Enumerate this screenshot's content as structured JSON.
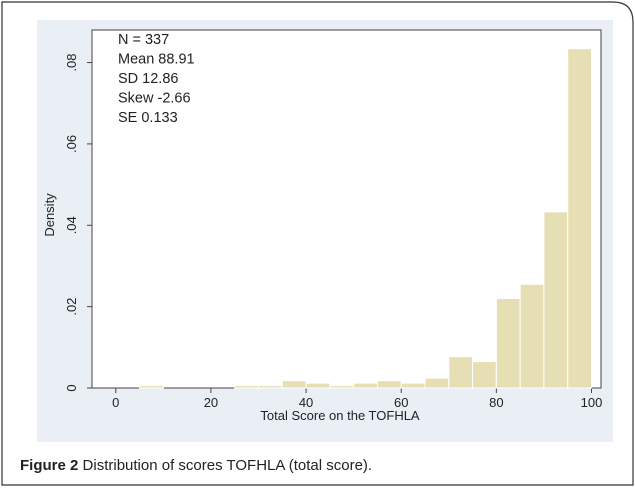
{
  "chart_data": {
    "type": "histogram",
    "ylabel": "Density",
    "xlabel": "Total Score on the TOFHLA",
    "bins": [
      5,
      10,
      15,
      20,
      25,
      30,
      35,
      40,
      45,
      50,
      55,
      60,
      65,
      70,
      75,
      80,
      85,
      90,
      95,
      100
    ],
    "values": [
      0.0006,
      0,
      0,
      0,
      0.0006,
      0.0006,
      0.0018,
      0.0012,
      0.0006,
      0.0012,
      0.0018,
      0.0012,
      0.0024,
      0.0077,
      0.0065,
      0.022,
      0.0255,
      0.0433,
      0.0834
    ],
    "color": "#e6dfb4",
    "xlim": [
      -5,
      102
    ],
    "xticks": [
      0,
      20,
      40,
      60,
      80,
      100
    ],
    "ylim": [
      0,
      0.088
    ],
    "yticks": [
      0,
      {
        "value": 0.02,
        "label": ".02"
      },
      {
        "value": 0.04,
        "label": ".04"
      },
      {
        "value": 0.06,
        "label": ".06"
      },
      {
        "value": 0.08,
        "label": ".08"
      }
    ],
    "annotations": [
      "N = 337",
      "Mean 88.91",
      "SD 12.86",
      "Skew -2.66",
      "SE 0.133"
    ]
  },
  "caption": {
    "label": "Figure 2",
    "text": "Distribution of scores TOFHLA (total score)."
  }
}
